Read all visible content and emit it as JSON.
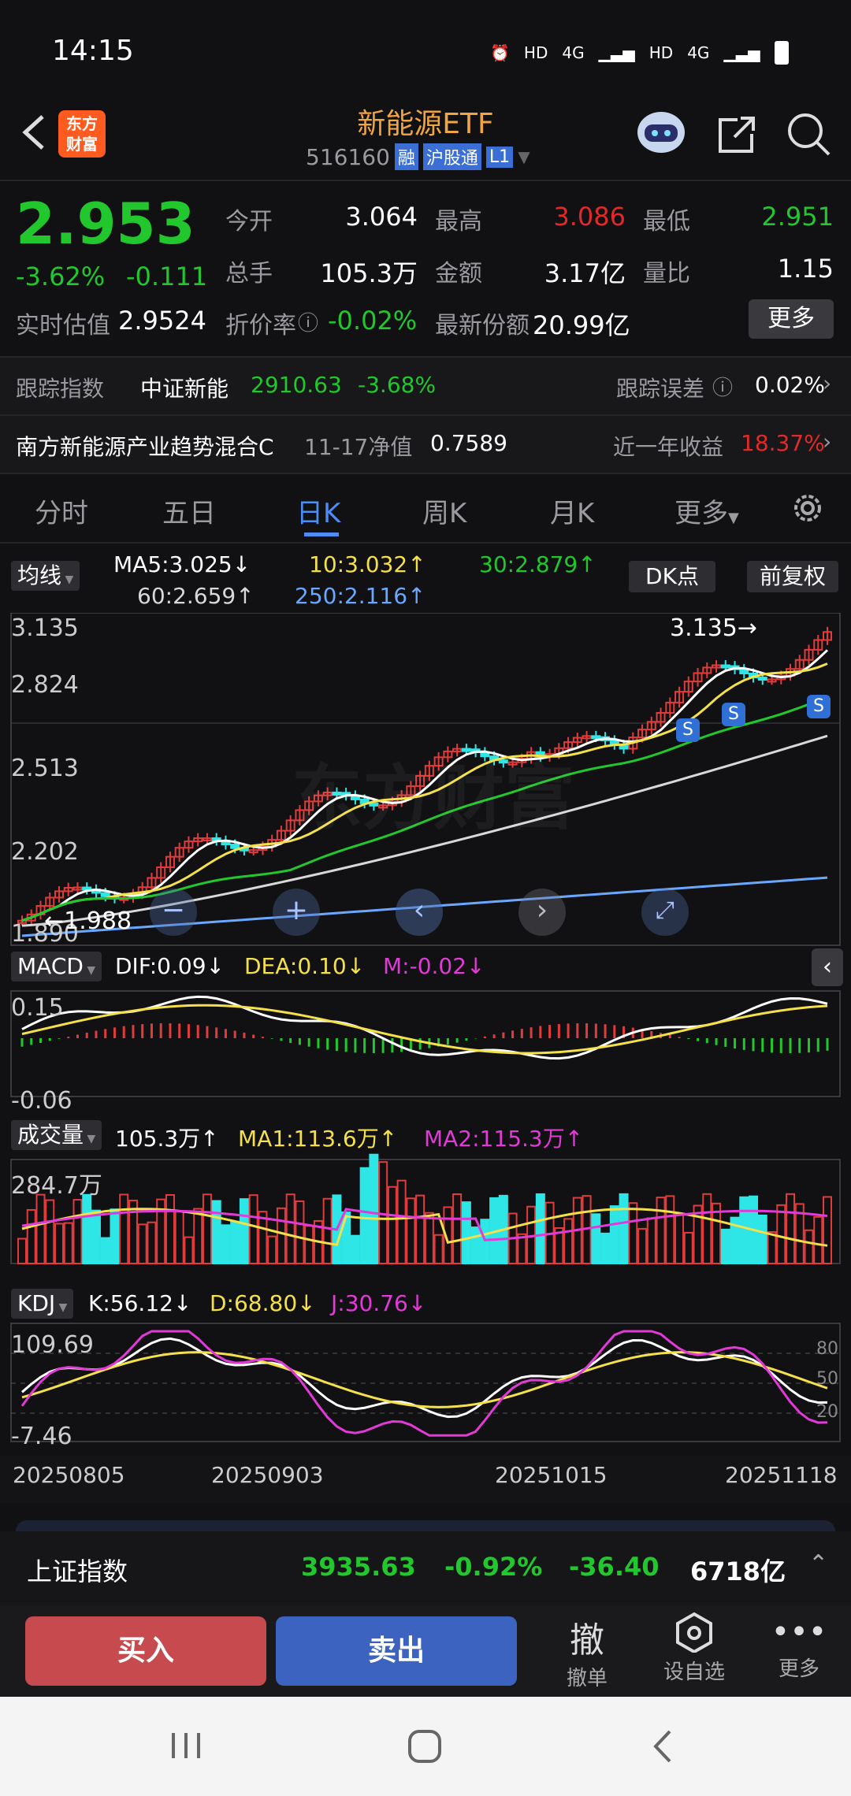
{
  "status": {
    "time": "14:15",
    "indicators": [
      "HD",
      "4G",
      "HD",
      "4G"
    ]
  },
  "header": {
    "title": "新能源ETF",
    "code": "516160",
    "tags": [
      "融",
      "沪股通",
      "L1"
    ],
    "app_logo": "东方\n财富"
  },
  "quote": {
    "price": "2.953",
    "change_pct": "-3.62%",
    "change": "-0.111",
    "open_label": "今开",
    "open": "3.064",
    "high_label": "最高",
    "high": "3.086",
    "low_label": "最低",
    "low": "2.951",
    "volume_label": "总手",
    "volume": "105.3万",
    "amount_label": "金额",
    "amount": "3.17亿",
    "ratio_label": "量比",
    "ratio": "1.15",
    "est_label": "实时估值",
    "est": "2.9524",
    "discount_label": "折价率",
    "discount": "-0.02%",
    "shares_label": "最新份额",
    "shares": "20.99亿",
    "more": "更多"
  },
  "track": {
    "label": "跟踪指数",
    "index": "中证新能",
    "value": "2910.63",
    "pct": "-3.68%",
    "err_label": "跟踪误差",
    "err": "0.02%"
  },
  "fund": {
    "name": "南方新能源产业趋势混合C",
    "nav_label": "11-17净值",
    "nav": "0.7589",
    "ret_label": "近一年收益",
    "ret": "18.37%"
  },
  "tabs": [
    "分时",
    "五日",
    "日K",
    "周K",
    "月K",
    "更多"
  ],
  "active_tab": 2,
  "ma": {
    "btn": "均线",
    "ma5": "MA5:3.025",
    "ma10": "10:3.032",
    "ma30": "30:2.879",
    "ma60": "60:2.659",
    "ma250": "250:2.116",
    "dk": "DK点",
    "fq": "前复权"
  },
  "kline": {
    "y_labels": [
      "3.135",
      "2.824",
      "2.513",
      "2.202",
      "1.890"
    ],
    "max_label": "3.135",
    "min_label": "1.988",
    "signals": [
      "S",
      "S",
      "S"
    ],
    "watermark": "东方财富"
  },
  "macd": {
    "btn": "MACD",
    "dif": "DIF:0.09",
    "dea": "DEA:0.10",
    "m": "M:-0.02",
    "y_top": "0.15",
    "y_bot": "-0.06"
  },
  "vol": {
    "btn": "成交量",
    "v": "105.3万",
    "ma1": "MA1:113.6万",
    "ma2": "MA2:115.3万",
    "y_top": "284.7万"
  },
  "kdj": {
    "btn": "KDJ",
    "k": "K:56.12",
    "d": "D:68.80",
    "j": "J:30.76",
    "y_top": "109.69",
    "y_bot": "-7.46",
    "levels": [
      "80",
      "50",
      "20"
    ]
  },
  "dates": [
    "20250805",
    "20250903",
    "20251015",
    "20251118"
  ],
  "market": {
    "name": "上证指数",
    "value": "3935.63",
    "pct": "-0.92%",
    "chg": "-36.40",
    "amount": "6718亿"
  },
  "actions": {
    "buy": "买入",
    "sell": "卖出",
    "cancel_icon": "撤",
    "cancel": "撤单",
    "fav": "设自选",
    "more": "更多"
  },
  "chart_data": {
    "type": "candlestick",
    "title": "新能源ETF 日K",
    "ylim": [
      1.89,
      3.135
    ],
    "x_ticks": [
      "20250805",
      "20250903",
      "20251015",
      "20251118"
    ],
    "ma_series": [
      {
        "name": "MA5",
        "value": 3.025
      },
      {
        "name": "MA10",
        "value": 3.032
      },
      {
        "name": "MA30",
        "value": 2.879
      },
      {
        "name": "MA60",
        "value": 2.659
      },
      {
        "name": "MA250",
        "value": 2.116
      }
    ],
    "macd": {
      "DIF": 0.09,
      "DEA": 0.1,
      "M": -0.02,
      "ylim": [
        -0.06,
        0.15
      ]
    },
    "volume": {
      "last": "105.3万",
      "MA1": "113.6万",
      "MA2": "115.3万",
      "max": "284.7万"
    },
    "kdj": {
      "K": 56.12,
      "D": 68.8,
      "J": 30.76,
      "ylim": [
        -7.46,
        109.69
      ]
    }
  }
}
